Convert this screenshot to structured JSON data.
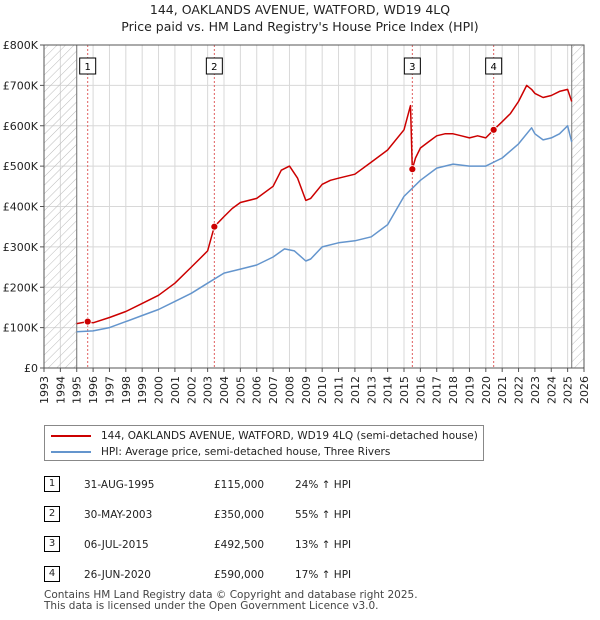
{
  "title": {
    "line1": "144, OAKLANDS AVENUE, WATFORD, WD19 4LQ",
    "line2": "Price paid vs. HM Land Registry's House Price Index (HPI)"
  },
  "colors": {
    "property": "#cc0000",
    "hpi": "#6495cd",
    "vline": "#e06060",
    "grid": "#d8d8d8",
    "hatch": "#bbbbbb"
  },
  "legend": {
    "property": "144, OAKLANDS AVENUE, WATFORD, WD19 4LQ (semi-detached house)",
    "hpi": "HPI: Average price, semi-detached house, Three Rivers"
  },
  "sales": [
    {
      "num": "1",
      "date": "31-AUG-1995",
      "price": "£115,000",
      "hpi": "24% ↑ HPI"
    },
    {
      "num": "2",
      "date": "30-MAY-2003",
      "price": "£350,000",
      "hpi": "55% ↑ HPI"
    },
    {
      "num": "3",
      "date": "06-JUL-2015",
      "price": "£492,500",
      "hpi": "13% ↑ HPI"
    },
    {
      "num": "4",
      "date": "26-JUN-2020",
      "price": "£590,000",
      "hpi": "17% ↑ HPI"
    }
  ],
  "footer": {
    "line1": "Contains HM Land Registry data © Copyright and database right 2025.",
    "line2": "This data is licensed under the Open Government Licence v3.0."
  },
  "chart_data": {
    "type": "line",
    "title": "144, OAKLANDS AVENUE, WATFORD, WD19 4LQ",
    "subtitle": "Price paid vs. HM Land Registry's House Price Index (HPI)",
    "xlim": [
      1993,
      2026
    ],
    "ylim": [
      0,
      800000
    ],
    "data_start": 1995.0,
    "data_end": 2025.25,
    "x_ticks": [
      1993,
      1994,
      1995,
      1996,
      1997,
      1998,
      1999,
      2000,
      2001,
      2002,
      2003,
      2004,
      2005,
      2006,
      2007,
      2008,
      2009,
      2010,
      2011,
      2012,
      2013,
      2014,
      2015,
      2016,
      2017,
      2018,
      2019,
      2020,
      2021,
      2022,
      2023,
      2024,
      2025,
      2026
    ],
    "y_ticks": [
      0,
      100000,
      200000,
      300000,
      400000,
      500000,
      600000,
      700000,
      800000
    ],
    "y_tick_labels": [
      "£0",
      "£100K",
      "£200K",
      "£300K",
      "£400K",
      "£500K",
      "£600K",
      "£700K",
      "£800K"
    ],
    "markers": [
      {
        "label": "1",
        "x": 1995.67,
        "y": 115000
      },
      {
        "label": "2",
        "x": 2003.41,
        "y": 350000
      },
      {
        "label": "3",
        "x": 2015.51,
        "y": 492500
      },
      {
        "label": "4",
        "x": 2020.48,
        "y": 590000
      }
    ],
    "series": [
      {
        "name": "144, OAKLANDS AVENUE, WATFORD, WD19 4LQ (semi-detached house)",
        "x": [
          1995.0,
          1995.67,
          1996.0,
          1997.0,
          1998.0,
          1999.0,
          2000.0,
          2001.0,
          2002.0,
          2002.5,
          2003.0,
          2003.41,
          2004.0,
          2004.5,
          2005.0,
          2006.0,
          2007.0,
          2007.5,
          2008.0,
          2008.5,
          2009.0,
          2009.3,
          2010.0,
          2010.5,
          2011.0,
          2012.0,
          2013.0,
          2014.0,
          2015.0,
          2015.4,
          2015.51,
          2015.7,
          2016.0,
          2016.5,
          2017.0,
          2017.5,
          2018.0,
          2018.5,
          2019.0,
          2019.5,
          2020.0,
          2020.48,
          2021.0,
          2021.5,
          2022.0,
          2022.5,
          2022.8,
          2023.0,
          2023.5,
          2024.0,
          2024.5,
          2025.0,
          2025.25
        ],
        "values": [
          110000,
          115000,
          112000,
          125000,
          140000,
          160000,
          180000,
          210000,
          250000,
          270000,
          290000,
          350000,
          375000,
          395000,
          410000,
          420000,
          450000,
          490000,
          500000,
          470000,
          415000,
          420000,
          455000,
          465000,
          470000,
          480000,
          510000,
          540000,
          590000,
          650000,
          492500,
          520000,
          545000,
          560000,
          575000,
          580000,
          580000,
          575000,
          570000,
          575000,
          570000,
          590000,
          610000,
          630000,
          660000,
          700000,
          690000,
          680000,
          670000,
          675000,
          685000,
          690000,
          660000
        ]
      },
      {
        "name": "HPI: Average price, semi-detached house, Three Rivers",
        "x": [
          1995.0,
          1996.0,
          1997.0,
          1998.0,
          1999.0,
          2000.0,
          2001.0,
          2002.0,
          2003.0,
          2004.0,
          2005.0,
          2006.0,
          2007.0,
          2007.7,
          2008.3,
          2009.0,
          2009.3,
          2010.0,
          2011.0,
          2012.0,
          2013.0,
          2014.0,
          2015.0,
          2016.0,
          2017.0,
          2018.0,
          2019.0,
          2020.0,
          2021.0,
          2022.0,
          2022.8,
          2023.0,
          2023.5,
          2024.0,
          2024.5,
          2025.0,
          2025.25
        ],
        "values": [
          90000,
          92000,
          100000,
          115000,
          130000,
          145000,
          165000,
          185000,
          210000,
          235000,
          245000,
          255000,
          275000,
          295000,
          290000,
          265000,
          270000,
          300000,
          310000,
          315000,
          325000,
          355000,
          425000,
          465000,
          495000,
          505000,
          500000,
          500000,
          520000,
          555000,
          595000,
          580000,
          565000,
          570000,
          580000,
          600000,
          560000
        ]
      }
    ]
  }
}
